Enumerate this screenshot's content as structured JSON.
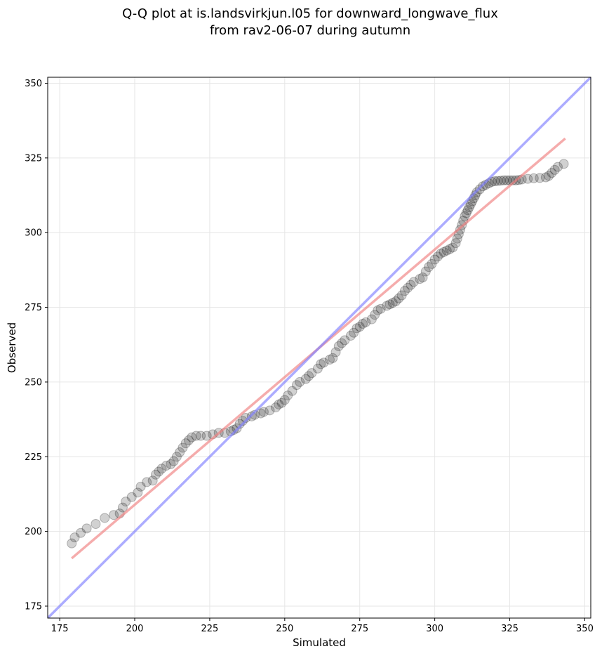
{
  "chart_data": {
    "type": "scatter",
    "title_line1": "Q-Q plot at is.landsvirkjun.l05 for downward_longwave_flux",
    "title_line2": "from rav2-06-07 during autumn",
    "xlabel": "Simulated",
    "ylabel": "Observed",
    "xlim": [
      171,
      352
    ],
    "ylim": [
      171,
      352
    ],
    "xticks": [
      175,
      200,
      225,
      250,
      275,
      300,
      325,
      350
    ],
    "yticks": [
      175,
      200,
      225,
      250,
      275,
      300,
      325,
      350
    ],
    "grid": true,
    "series": [
      {
        "kind": "quantiles",
        "color": "#000000",
        "points": [
          [
            179.0,
            196.0
          ],
          [
            180.0,
            198.0
          ],
          [
            182.0,
            199.5
          ],
          [
            184.0,
            201.0
          ],
          [
            187.0,
            202.5
          ],
          [
            190.0,
            204.5
          ],
          [
            193.0,
            205.5
          ],
          [
            195.0,
            206.0
          ],
          [
            196.0,
            208.0
          ],
          [
            197.0,
            210.0
          ],
          [
            199.0,
            211.5
          ],
          [
            201.0,
            213.0
          ],
          [
            202.0,
            215.0
          ],
          [
            204.0,
            216.5
          ],
          [
            206.0,
            217.0
          ],
          [
            207.0,
            219.0
          ],
          [
            208.0,
            220.0
          ],
          [
            209.0,
            221.0
          ],
          [
            210.5,
            222.0
          ],
          [
            212.0,
            222.5
          ],
          [
            213.0,
            223.5
          ],
          [
            214.0,
            225.0
          ],
          [
            215.0,
            226.5
          ],
          [
            216.0,
            228.0
          ],
          [
            217.0,
            229.5
          ],
          [
            218.0,
            230.5
          ],
          [
            219.0,
            231.5
          ],
          [
            220.5,
            232.0
          ],
          [
            222.0,
            232.0
          ],
          [
            224.0,
            232.0
          ],
          [
            226.0,
            232.5
          ],
          [
            228.0,
            233.0
          ],
          [
            230.0,
            233.0
          ],
          [
            232.0,
            233.5
          ],
          [
            233.0,
            234.0
          ],
          [
            234.0,
            234.5
          ],
          [
            235.0,
            236.0
          ],
          [
            236.0,
            237.0
          ],
          [
            237.0,
            238.0
          ],
          [
            239.0,
            238.5
          ],
          [
            240.0,
            239.0
          ],
          [
            242.0,
            239.5
          ],
          [
            243.0,
            240.0
          ],
          [
            245.0,
            240.5
          ],
          [
            247.0,
            241.5
          ],
          [
            248.0,
            242.5
          ],
          [
            249.0,
            243.0
          ],
          [
            250.0,
            244.0
          ],
          [
            251.0,
            245.5
          ],
          [
            252.5,
            247.0
          ],
          [
            254.0,
            249.0
          ],
          [
            255.0,
            250.0
          ],
          [
            257.0,
            251.0
          ],
          [
            258.0,
            252.0
          ],
          [
            259.0,
            253.0
          ],
          [
            261.0,
            254.5
          ],
          [
            262.0,
            256.0
          ],
          [
            263.0,
            256.5
          ],
          [
            265.0,
            257.5
          ],
          [
            266.0,
            258.0
          ],
          [
            267.0,
            260.0
          ],
          [
            268.0,
            262.0
          ],
          [
            269.0,
            263.0
          ],
          [
            270.0,
            264.0
          ],
          [
            272.0,
            265.5
          ],
          [
            273.0,
            266.5
          ],
          [
            274.0,
            268.0
          ],
          [
            275.0,
            268.5
          ],
          [
            276.0,
            269.5
          ],
          [
            277.0,
            270.0
          ],
          [
            279.0,
            271.0
          ],
          [
            280.0,
            272.5
          ],
          [
            281.0,
            274.0
          ],
          [
            282.0,
            274.5
          ],
          [
            284.0,
            275.5
          ],
          [
            285.0,
            276.0
          ],
          [
            286.0,
            276.5
          ],
          [
            287.0,
            277.0
          ],
          [
            288.0,
            278.0
          ],
          [
            289.0,
            279.0
          ],
          [
            290.0,
            280.5
          ],
          [
            291.0,
            281.5
          ],
          [
            292.0,
            282.5
          ],
          [
            293.0,
            283.5
          ],
          [
            295.0,
            284.5
          ],
          [
            296.0,
            285.0
          ],
          [
            297.0,
            287.0
          ],
          [
            298.0,
            288.5
          ],
          [
            299.0,
            289.5
          ],
          [
            300.0,
            291.0
          ],
          [
            301.0,
            292.0
          ],
          [
            302.0,
            293.0
          ],
          [
            303.0,
            293.5
          ],
          [
            304.0,
            294.0
          ],
          [
            305.0,
            294.5
          ],
          [
            306.0,
            295.0
          ],
          [
            307.0,
            296.5
          ],
          [
            307.5,
            298.0
          ],
          [
            308.0,
            299.5
          ],
          [
            308.5,
            301.0
          ],
          [
            309.0,
            302.5
          ],
          [
            309.5,
            304.0
          ],
          [
            310.0,
            305.5
          ],
          [
            310.5,
            306.5
          ],
          [
            311.0,
            307.5
          ],
          [
            311.5,
            308.5
          ],
          [
            312.0,
            309.5
          ],
          [
            312.5,
            310.5
          ],
          [
            313.0,
            311.5
          ],
          [
            313.5,
            312.5
          ],
          [
            314.0,
            313.5
          ],
          [
            315.0,
            314.5
          ],
          [
            316.0,
            315.5
          ],
          [
            317.0,
            316.0
          ],
          [
            318.0,
            316.5
          ],
          [
            319.0,
            317.0
          ],
          [
            320.0,
            317.2
          ],
          [
            321.0,
            317.3
          ],
          [
            322.0,
            317.4
          ],
          [
            323.0,
            317.5
          ],
          [
            324.0,
            317.5
          ],
          [
            325.0,
            317.5
          ],
          [
            326.0,
            317.5
          ],
          [
            327.0,
            317.5
          ],
          [
            328.0,
            317.6
          ],
          [
            329.0,
            317.8
          ],
          [
            331.0,
            318.0
          ],
          [
            333.0,
            318.2
          ],
          [
            335.0,
            318.3
          ],
          [
            337.0,
            318.5
          ],
          [
            338.0,
            319.0
          ],
          [
            339.0,
            320.0
          ],
          [
            340.0,
            321.0
          ],
          [
            341.0,
            322.0
          ],
          [
            343.0,
            323.0
          ]
        ]
      },
      {
        "kind": "fit-line",
        "color": "#f08080",
        "points": [
          [
            179.0,
            191.0
          ],
          [
            343.5,
            331.5
          ]
        ]
      },
      {
        "kind": "identity-line",
        "color": "#8080ff",
        "points": [
          [
            171.0,
            171.0
          ],
          [
            352.0,
            352.0
          ]
        ]
      }
    ]
  }
}
